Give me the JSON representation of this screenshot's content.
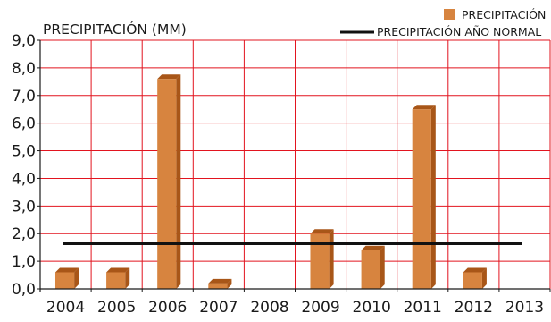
{
  "chart_data": {
    "type": "bar",
    "ylabel": "PRECIPITACIÓN (MM)",
    "categories": [
      "2004",
      "2005",
      "2006",
      "2007",
      "2008",
      "2009",
      "2010",
      "2011",
      "2012",
      "2013"
    ],
    "series": [
      {
        "name": "PRECIPITACIÓN",
        "values": [
          0.6,
          0.6,
          7.6,
          0.2,
          0.0,
          2.0,
          1.4,
          6.5,
          0.6,
          0.0
        ]
      }
    ],
    "reference_line": {
      "name": "PRECIPITACIÓN AÑO NORMAL",
      "value": 1.65
    },
    "ylim": [
      0,
      9
    ],
    "yticks": [
      "0,0",
      "1,0",
      "2,0",
      "3,0",
      "4,0",
      "5,0",
      "6,0",
      "7,0",
      "8,0",
      "9,0"
    ],
    "grid": true,
    "legend_position": "top-right",
    "colors": {
      "bar_front": "#d7843f",
      "bar_side": "#a85618",
      "bar_top": "#e9a66b",
      "grid": "#e2141f",
      "axis": "#1a1a1a",
      "reference_line": "#111111"
    }
  }
}
